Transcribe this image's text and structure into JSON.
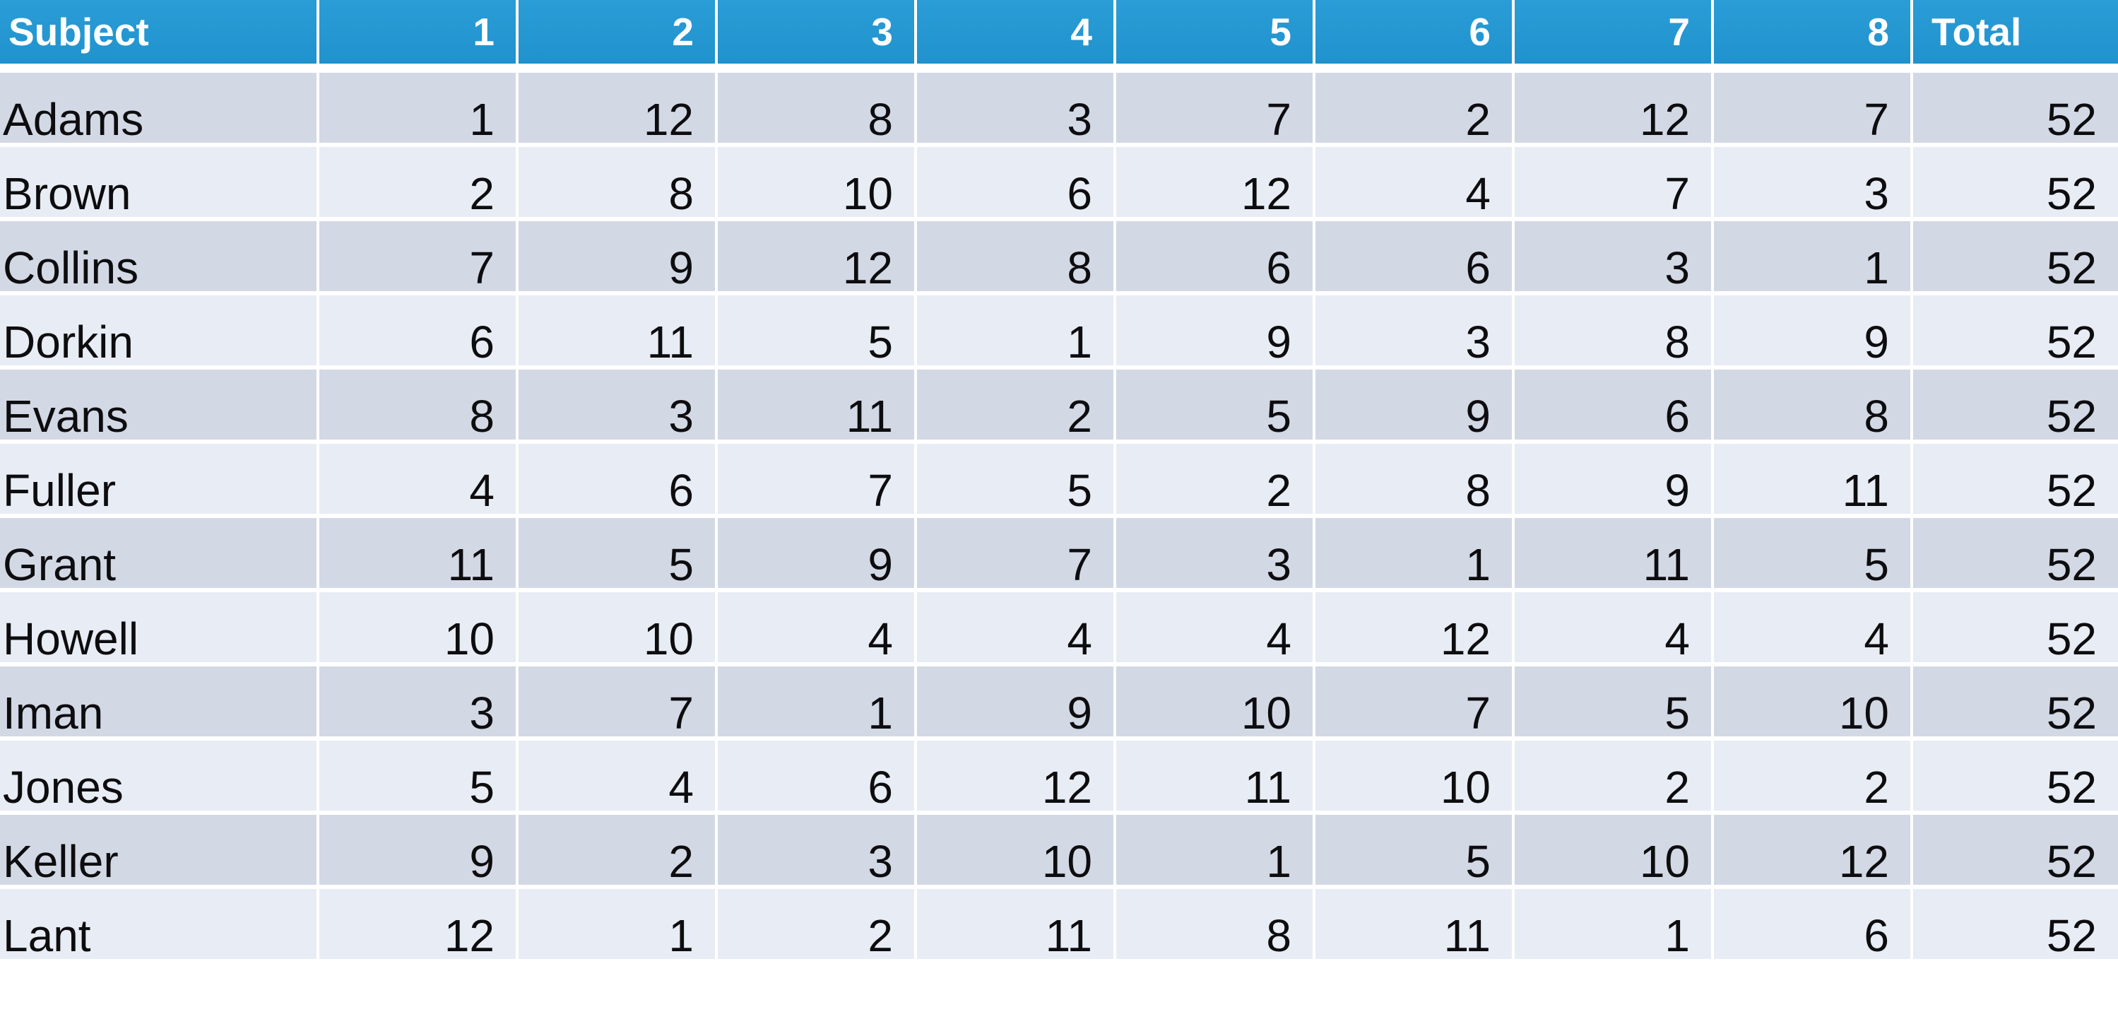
{
  "chart_data": {
    "type": "table",
    "title": "",
    "columns": [
      "Subject",
      "1",
      "2",
      "3",
      "4",
      "5",
      "6",
      "7",
      "8",
      "Total"
    ],
    "rows": [
      {
        "subject": "Adams",
        "values": [
          "1",
          "12",
          "8",
          "3",
          "7",
          "2",
          "12",
          "7"
        ],
        "total": "52"
      },
      {
        "subject": "Brown",
        "values": [
          "2",
          "8",
          "10",
          "6",
          "12",
          "4",
          "7",
          "3"
        ],
        "total": "52"
      },
      {
        "subject": "Collins",
        "values": [
          "7",
          "9",
          "12",
          "8",
          "6",
          "6",
          "3",
          "1"
        ],
        "total": "52"
      },
      {
        "subject": "Dorkin",
        "values": [
          "6",
          "11",
          "5",
          "1",
          "9",
          "3",
          "8",
          "9"
        ],
        "total": "52"
      },
      {
        "subject": "Evans",
        "values": [
          "8",
          "3",
          "11",
          "2",
          "5",
          "9",
          "6",
          "8"
        ],
        "total": "52"
      },
      {
        "subject": "Fuller",
        "values": [
          "4",
          "6",
          "7",
          "5",
          "2",
          "8",
          "9",
          "11"
        ],
        "total": "52"
      },
      {
        "subject": "Grant",
        "values": [
          "11",
          "5",
          "9",
          "7",
          "3",
          "1",
          "11",
          "5"
        ],
        "total": "52"
      },
      {
        "subject": "Howell",
        "values": [
          "10",
          "10",
          "4",
          "4",
          "4",
          "12",
          "4",
          "4"
        ],
        "total": "52"
      },
      {
        "subject": "Iman",
        "values": [
          "3",
          "7",
          "1",
          "9",
          "10",
          "7",
          "5",
          "10"
        ],
        "total": "52"
      },
      {
        "subject": "Jones",
        "values": [
          "5",
          "4",
          "6",
          "12",
          "11",
          "10",
          "2",
          "2"
        ],
        "total": "52"
      },
      {
        "subject": "Keller",
        "values": [
          "9",
          "2",
          "3",
          "10",
          "1",
          "5",
          "10",
          "12"
        ],
        "total": "52"
      },
      {
        "subject": "Lant",
        "values": [
          "12",
          "1",
          "2",
          "11",
          "8",
          "11",
          "1",
          "6"
        ],
        "total": "52"
      }
    ],
    "colors": {
      "header_bg": "#2497d3",
      "header_text": "#ffffff",
      "band_dark": "#d3d8e5",
      "band_light": "#e8ecf4",
      "cell_text": "#0d0d0f",
      "divider": "#ffffff"
    }
  }
}
